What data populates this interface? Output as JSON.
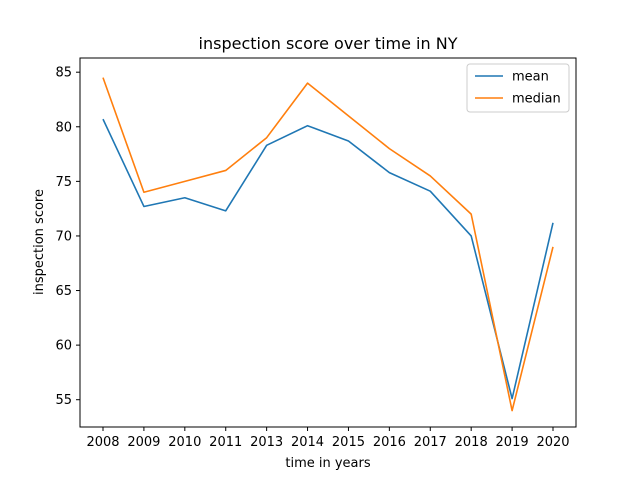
{
  "chart_data": {
    "type": "line",
    "title": "inspection score over time in NY",
    "xlabel": "time in years",
    "ylabel": "inspection score",
    "categories": [
      "2008",
      "2009",
      "2010",
      "2011",
      "2013",
      "2014",
      "2015",
      "2016",
      "2017",
      "2018",
      "2019",
      "2020"
    ],
    "ylim": [
      52.5,
      86.3
    ],
    "yticks": [
      55,
      60,
      65,
      70,
      75,
      80,
      85
    ],
    "series": [
      {
        "name": "mean",
        "color": "#1f77b4",
        "values": [
          80.7,
          72.7,
          73.5,
          72.3,
          78.3,
          80.1,
          78.7,
          75.8,
          74.1,
          70.0,
          55.1,
          71.2
        ]
      },
      {
        "name": "median",
        "color": "#ff7f0e",
        "values": [
          84.5,
          74.0,
          75.0,
          76.0,
          79.0,
          84.0,
          81.0,
          78.0,
          75.5,
          72.0,
          54.0,
          69.0
        ]
      }
    ],
    "grid": false,
    "legend_position": "top-right"
  }
}
